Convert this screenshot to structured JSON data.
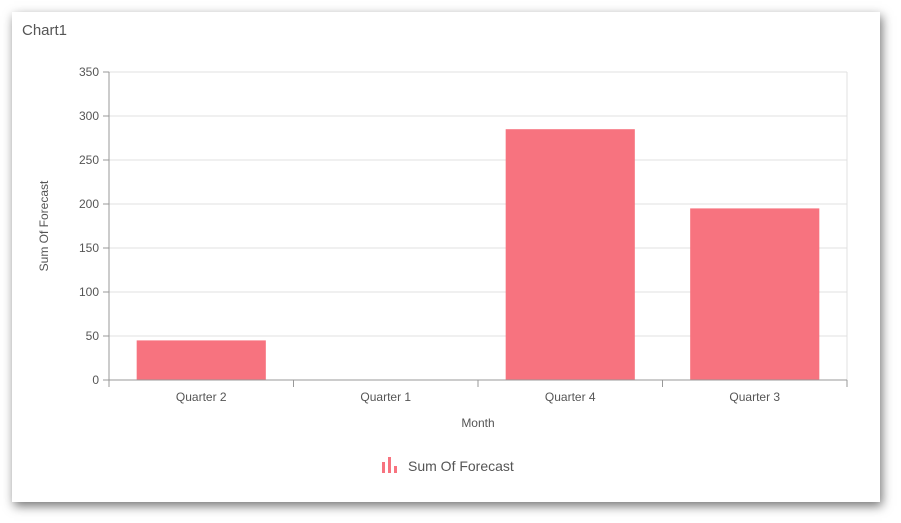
{
  "panel": {
    "title": "Chart1"
  },
  "chart_data": {
    "type": "bar",
    "categories": [
      "Quarter 2",
      "Quarter 1",
      "Quarter 4",
      "Quarter 3"
    ],
    "series": [
      {
        "name": "Sum Of Forecast",
        "values": [
          45,
          0,
          285,
          195
        ],
        "color": "#F7737F"
      }
    ],
    "xlabel": "Month",
    "ylabel": "Sum Of Forecast",
    "ylim": [
      0,
      350
    ],
    "yticks": [
      0,
      50,
      100,
      150,
      200,
      250,
      300,
      350
    ],
    "grid": true,
    "legend_position": "bottom"
  },
  "colors": {
    "bar": "#F7737F",
    "grid": "#E0E0E0",
    "axis": "#999999",
    "text": "#555555"
  },
  "icons": {
    "legend": "bar-chart-icon"
  }
}
